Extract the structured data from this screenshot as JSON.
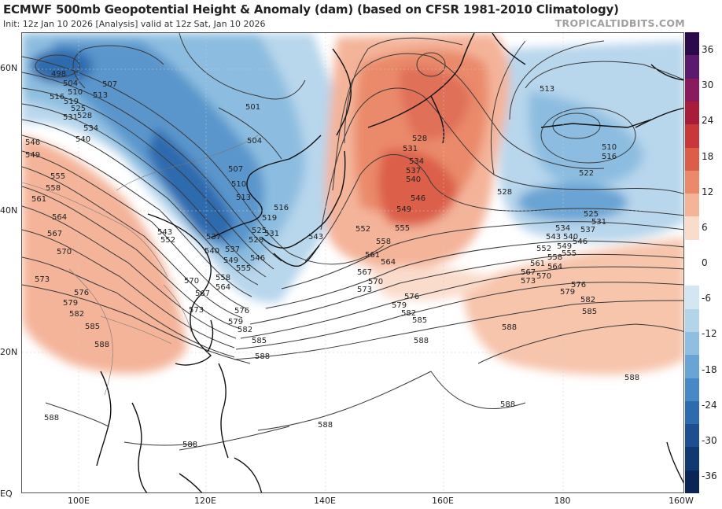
{
  "header": {
    "title": "ECMWF 500mb Geopotential Height & Anomaly (dam) (based on CFSR 1981-2010 Climatology)",
    "subtitle": "Init: 12z Jan 10 2026   [Analysis]   valid at 12z Sat, Jan 10 2026",
    "brand": "TROPICALTIDBITS.COM"
  },
  "axes": {
    "lat_labels": [
      "60N",
      "40N",
      "20N",
      "EQ"
    ],
    "lon_labels": [
      "100E",
      "120E",
      "140E",
      "160E",
      "180",
      "160W"
    ]
  },
  "colorbar": {
    "labels": [
      "36",
      "30",
      "24",
      "18",
      "12",
      "6",
      "0",
      "-6",
      "-12",
      "-18",
      "-24",
      "-30",
      "-36"
    ],
    "colors": [
      "#2a0a4a",
      "#5a1a6e",
      "#8a1a5e",
      "#a81e3a",
      "#c8383a",
      "#dc5e48",
      "#ea8a6a",
      "#f4b49a",
      "#fadccc",
      "#ffffff",
      "#ffffff",
      "#d4e6f2",
      "#b4d4ea",
      "#90bee0",
      "#6aa4d4",
      "#4888c4",
      "#2e6aae",
      "#1e4e90",
      "#123872",
      "#0a2456"
    ]
  },
  "contour_labels": {
    "c498": "498",
    "c501": "501",
    "c504": "504",
    "c507": "507",
    "c510": "510",
    "c513": "513",
    "c516": "516",
    "c519": "519",
    "c522": "522",
    "c525": "525",
    "c528": "528",
    "c531": "531",
    "c534": "534",
    "c537": "537",
    "c540": "540",
    "c543": "543",
    "c546": "546",
    "c549": "549",
    "c552": "552",
    "c555": "555",
    "c558": "558",
    "c561": "561",
    "c564": "564",
    "c567": "567",
    "c570": "570",
    "c573": "573",
    "c576": "576",
    "c579": "579",
    "c582": "582",
    "c585": "585",
    "c588": "588"
  },
  "theme": {
    "warm_anomaly": "#e8836a",
    "strong_warm_anomaly": "#d8533f",
    "cool_anomaly": "#8cbde0",
    "strong_cool_anomaly": "#2e6aae",
    "contour_line": "#3a3a3a",
    "coastline": "#111111"
  }
}
